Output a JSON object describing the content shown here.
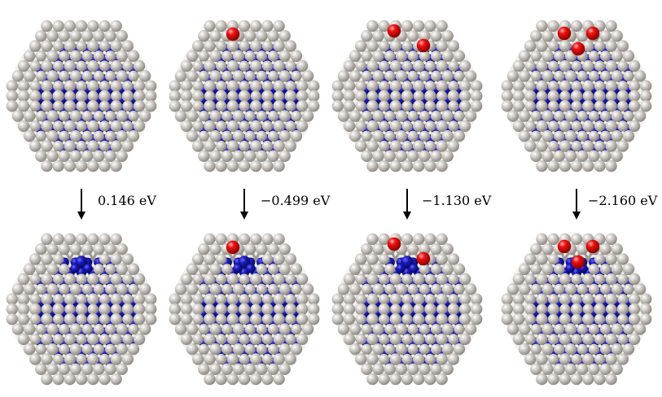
{
  "energies": [
    "0.146 eV",
    "−0.499 eV",
    "−1.130 eV",
    "−2.160 eV"
  ],
  "colors": {
    "shell_atom": "#bdb8b2",
    "core_atom": "#1a1ab8",
    "oxygen_atom": "#ee1111",
    "arrow": "#000000",
    "background": "#ffffff"
  },
  "clusters": {
    "top_row": [
      {
        "oxygen_count": 0,
        "core_exposed": false
      },
      {
        "oxygen_count": 1,
        "core_exposed": false
      },
      {
        "oxygen_count": 2,
        "core_exposed": false
      },
      {
        "oxygen_count": 3,
        "core_exposed": false
      }
    ],
    "bottom_row": [
      {
        "oxygen_count": 0,
        "core_exposed": true
      },
      {
        "oxygen_count": 1,
        "core_exposed": true
      },
      {
        "oxygen_count": 2,
        "core_exposed": true
      },
      {
        "oxygen_count": 3,
        "core_exposed": true
      }
    ]
  }
}
